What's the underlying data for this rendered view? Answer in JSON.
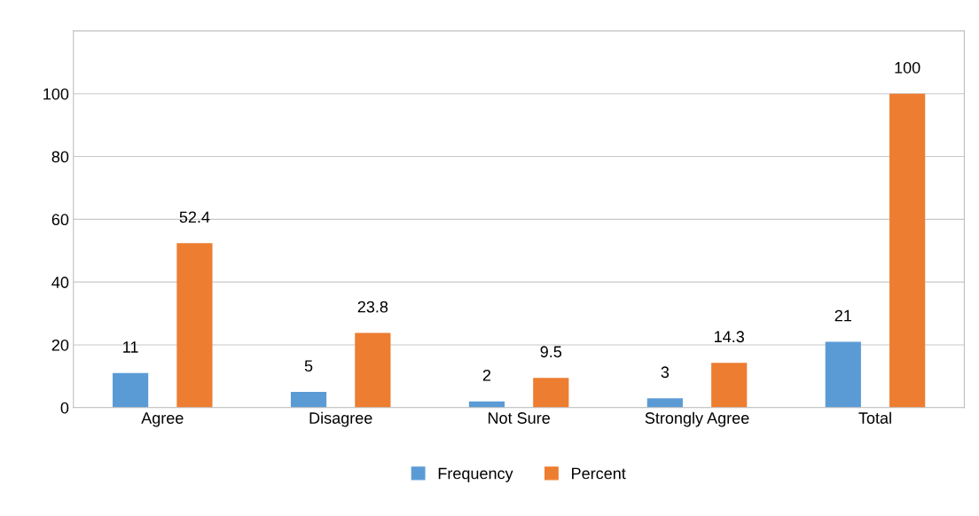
{
  "chart_data": {
    "type": "bar",
    "categories": [
      "Agree",
      "Disagree",
      "Not Sure",
      "Strongly Agree",
      "Total"
    ],
    "series": [
      {
        "name": "Frequency",
        "color": "#5b9bd5",
        "values": [
          11,
          5,
          2,
          3,
          21
        ]
      },
      {
        "name": "Percent",
        "color": "#ed7d31",
        "values": [
          52.4,
          23.8,
          9.5,
          14.3,
          100
        ]
      }
    ],
    "ylim": [
      0,
      120
    ],
    "yticks": [
      0,
      20,
      40,
      60,
      80,
      100
    ],
    "data_labels": true,
    "grid": "y",
    "legend": "bottom"
  }
}
